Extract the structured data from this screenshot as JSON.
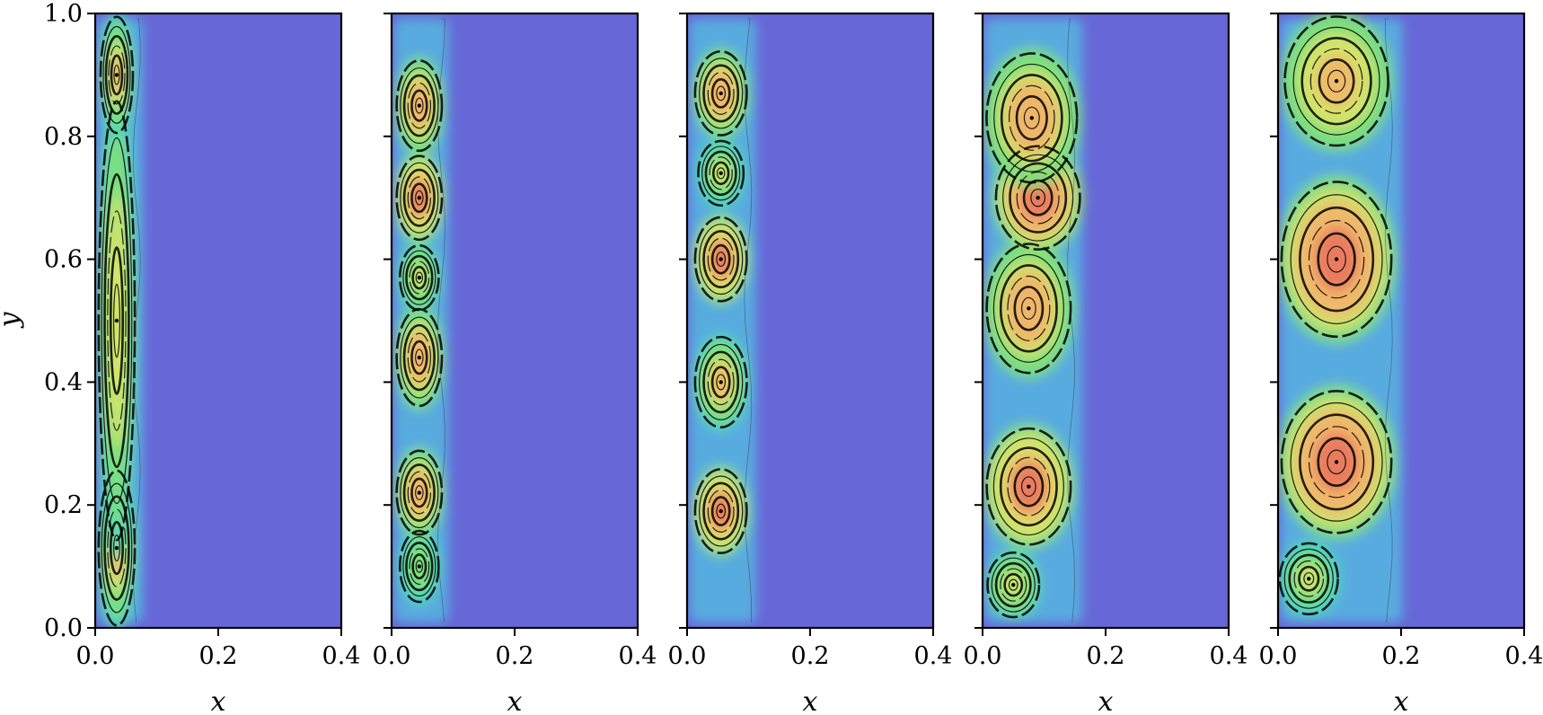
{
  "chart_data": {
    "type": "heatmap",
    "figure": {
      "panels": 5,
      "background_color": "#6767d7",
      "contour_color": "#000000"
    },
    "colormap": [
      "#6767d7",
      "#55b6e0",
      "#4fd7b8",
      "#7ee07a",
      "#d6e36a",
      "#f0b66b",
      "#e8755e"
    ],
    "x_axis": {
      "label": "x",
      "lim": [
        0,
        0.4
      ],
      "ticks": [
        0.0,
        0.2,
        0.4
      ],
      "tick_labels": [
        "0.0",
        "0.2",
        "0.4"
      ]
    },
    "y_axis": {
      "label": "y",
      "lim": [
        0,
        1
      ],
      "ticks": [
        0.0,
        0.2,
        0.4,
        0.6,
        0.8,
        1.0
      ],
      "tick_labels": [
        "0.0",
        "0.2",
        "0.4",
        "0.6",
        "0.8",
        "1.0"
      ]
    },
    "panels": [
      {
        "panel": 1,
        "band_width": 0.075,
        "vortices": [
          {
            "x": 0.035,
            "y": 0.13,
            "rx": 0.028,
            "ry": 0.12,
            "intensity": 0.55
          },
          {
            "x": 0.035,
            "y": 0.5,
            "rx": 0.028,
            "ry": 0.34,
            "intensity": 0.5
          },
          {
            "x": 0.035,
            "y": 0.9,
            "rx": 0.025,
            "ry": 0.09,
            "intensity": 0.55
          }
        ]
      },
      {
        "panel": 2,
        "band_width": 0.09,
        "vortices": [
          {
            "x": 0.045,
            "y": 0.1,
            "rx": 0.03,
            "ry": 0.055,
            "intensity": 0.35
          },
          {
            "x": 0.045,
            "y": 0.22,
            "rx": 0.035,
            "ry": 0.065,
            "intensity": 0.7
          },
          {
            "x": 0.045,
            "y": 0.44,
            "rx": 0.035,
            "ry": 0.075,
            "intensity": 0.7
          },
          {
            "x": 0.045,
            "y": 0.57,
            "rx": 0.03,
            "ry": 0.05,
            "intensity": 0.45
          },
          {
            "x": 0.045,
            "y": 0.7,
            "rx": 0.035,
            "ry": 0.065,
            "intensity": 0.75
          },
          {
            "x": 0.045,
            "y": 0.85,
            "rx": 0.035,
            "ry": 0.07,
            "intensity": 0.7
          }
        ]
      },
      {
        "panel": 3,
        "band_width": 0.11,
        "vortices": [
          {
            "x": 0.055,
            "y": 0.19,
            "rx": 0.04,
            "ry": 0.065,
            "intensity": 0.75
          },
          {
            "x": 0.055,
            "y": 0.4,
            "rx": 0.04,
            "ry": 0.07,
            "intensity": 0.55
          },
          {
            "x": 0.055,
            "y": 0.6,
            "rx": 0.04,
            "ry": 0.065,
            "intensity": 0.8
          },
          {
            "x": 0.055,
            "y": 0.74,
            "rx": 0.035,
            "ry": 0.05,
            "intensity": 0.4
          },
          {
            "x": 0.055,
            "y": 0.87,
            "rx": 0.04,
            "ry": 0.065,
            "intensity": 0.7
          }
        ]
      },
      {
        "panel": 4,
        "band_width": 0.16,
        "vortices": [
          {
            "x": 0.05,
            "y": 0.07,
            "rx": 0.04,
            "ry": 0.05,
            "intensity": 0.45
          },
          {
            "x": 0.075,
            "y": 0.23,
            "rx": 0.065,
            "ry": 0.09,
            "intensity": 0.75
          },
          {
            "x": 0.075,
            "y": 0.52,
            "rx": 0.065,
            "ry": 0.1,
            "intensity": 0.7
          },
          {
            "x": 0.09,
            "y": 0.7,
            "rx": 0.065,
            "ry": 0.08,
            "intensity": 0.85
          },
          {
            "x": 0.08,
            "y": 0.83,
            "rx": 0.07,
            "ry": 0.1,
            "intensity": 0.7
          }
        ]
      },
      {
        "panel": 5,
        "band_width": 0.2,
        "vortices": [
          {
            "x": 0.05,
            "y": 0.08,
            "rx": 0.045,
            "ry": 0.055,
            "intensity": 0.4
          },
          {
            "x": 0.095,
            "y": 0.27,
            "rx": 0.085,
            "ry": 0.11,
            "intensity": 0.85
          },
          {
            "x": 0.095,
            "y": 0.6,
            "rx": 0.085,
            "ry": 0.12,
            "intensity": 0.85
          },
          {
            "x": 0.095,
            "y": 0.89,
            "rx": 0.08,
            "ry": 0.1,
            "intensity": 0.65
          }
        ]
      }
    ]
  }
}
